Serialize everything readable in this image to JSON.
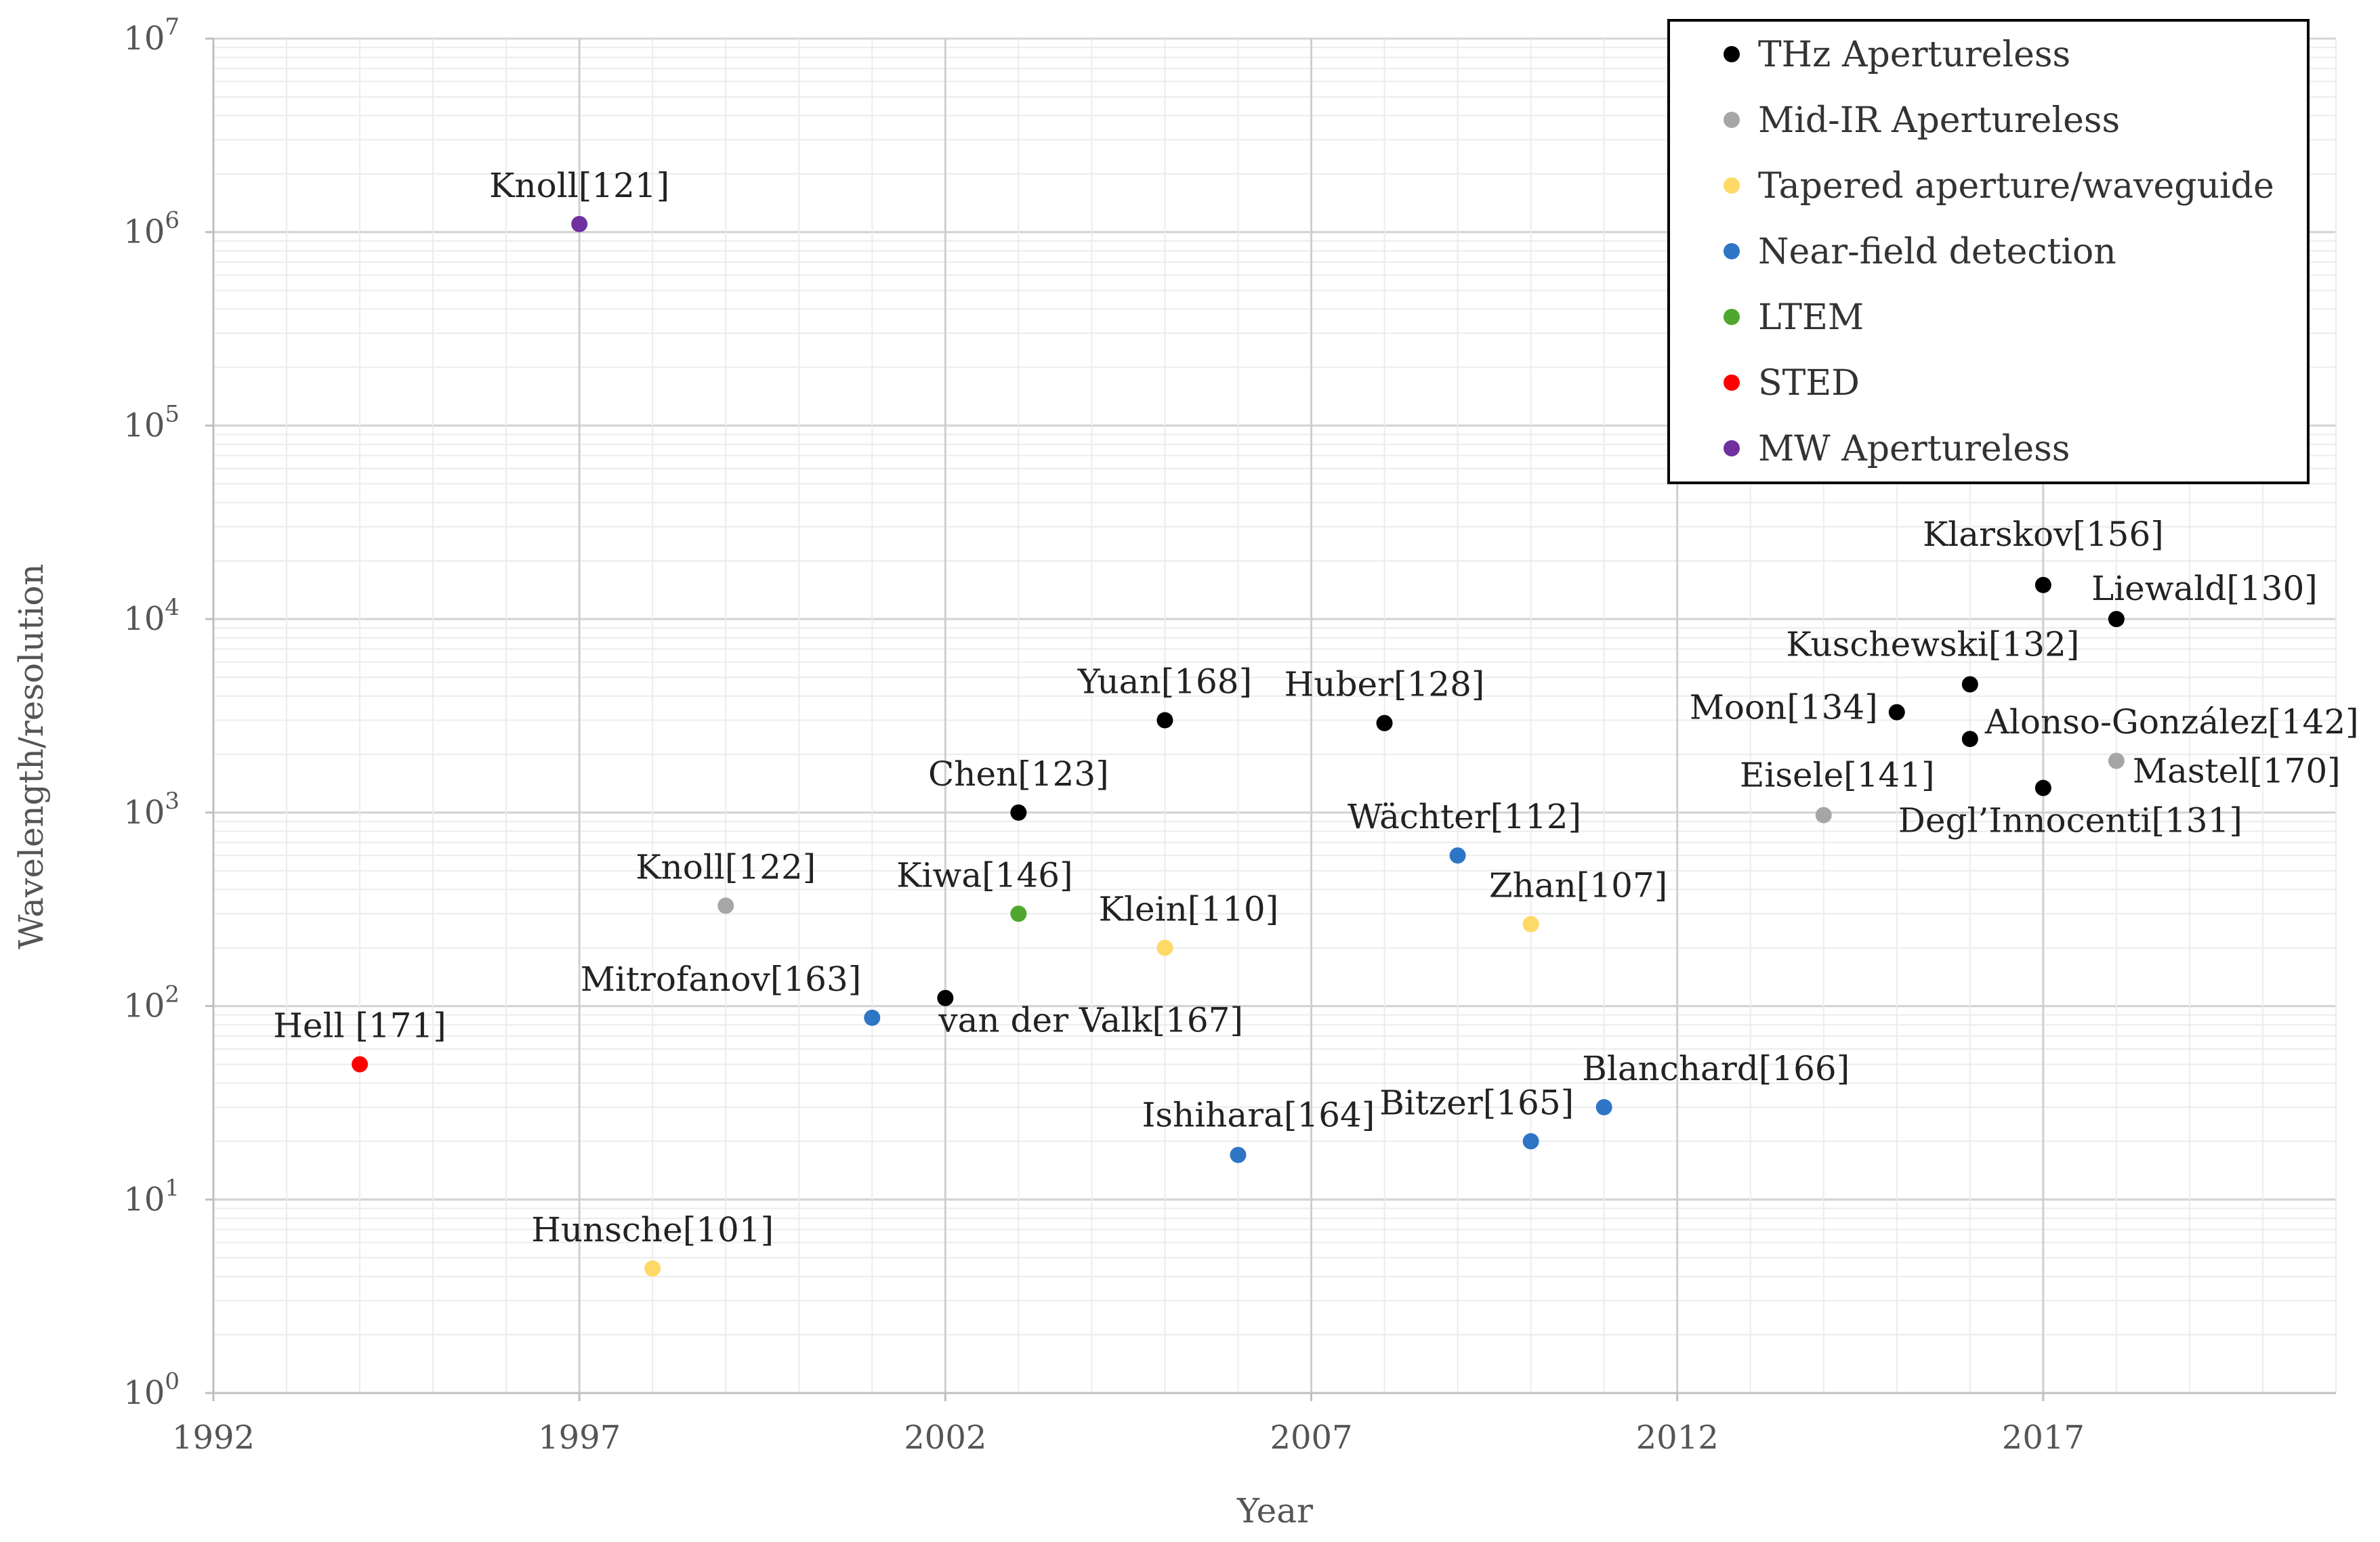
{
  "chart_data": {
    "type": "scatter",
    "title": "",
    "xlabel": "Year",
    "ylabel": "Wavelength/resolution",
    "xlim": [
      1992,
      2021
    ],
    "ylim_log10": [
      0,
      7
    ],
    "x_ticks": [
      "1992",
      "1997",
      "2002",
      "2007",
      "2012",
      "2017"
    ],
    "y_tick_base": "10",
    "y_tick_exponents": [
      "0",
      "1",
      "2",
      "3",
      "4",
      "5",
      "6",
      "7"
    ],
    "grid": true,
    "legend_position": "top-right",
    "series": [
      {
        "name": "THz Apertureless",
        "color": "#000000",
        "points": [
          {
            "label": "Chen[123]",
            "x": 2003,
            "y": 1000
          },
          {
            "label": "van der Valk[167]",
            "x": 2002,
            "y": 110
          },
          {
            "label": "Yuan[168]",
            "x": 2005,
            "y": 3000
          },
          {
            "label": "Huber[128]",
            "x": 2008,
            "y": 2900
          },
          {
            "label": "Moon[134]",
            "x": 2015,
            "y": 3300
          },
          {
            "label": "Kuschewski[132]",
            "x": 2016,
            "y": 4600
          },
          {
            "label": "Klarskov[156]",
            "x": 2017,
            "y": 15000
          },
          {
            "label": "Liewald[130]",
            "x": 2018,
            "y": 10000
          },
          {
            "label": "Alonso-González[142]",
            "x": 2016,
            "y": 2400
          },
          {
            "label": "Degl’Innocenti[131]",
            "x": 2017,
            "y": 1340
          }
        ]
      },
      {
        "name": "Mid-IR Apertureless",
        "color": "#a6a6a6",
        "points": [
          {
            "label": "Knoll[122]",
            "x": 1999,
            "y": 330
          },
          {
            "label": "Eisele[141]",
            "x": 2014,
            "y": 970
          },
          {
            "label": "Mastel[170]",
            "x": 2018,
            "y": 1850
          }
        ]
      },
      {
        "name": "Tapered aperture/waveguide",
        "color": "#ffd966",
        "points": [
          {
            "label": "Hunsche[101]",
            "x": 1998,
            "y": 4.4
          },
          {
            "label": "Klein[110]",
            "x": 2005,
            "y": 200
          },
          {
            "label": "Zhan[107]",
            "x": 2010,
            "y": 265
          }
        ]
      },
      {
        "name": "Near-field detection",
        "color": "#2e75c6",
        "points": [
          {
            "label": "Mitrofanov[163]",
            "x": 2001,
            "y": 87
          },
          {
            "label": "Ishihara[164]",
            "x": 2006,
            "y": 17
          },
          {
            "label": "Wächter[112]",
            "x": 2009,
            "y": 600
          },
          {
            "label": "Bitzer[165]",
            "x": 2010,
            "y": 20
          },
          {
            "label": "Blanchard[166]",
            "x": 2011,
            "y": 30
          }
        ]
      },
      {
        "name": "LTEM",
        "color": "#4ea72e",
        "points": [
          {
            "label": "Kiwa[146]",
            "x": 2003,
            "y": 300
          }
        ]
      },
      {
        "name": "STED",
        "color": "#ff0000",
        "points": [
          {
            "label": "Hell [171]",
            "x": 1994,
            "y": 50
          }
        ]
      },
      {
        "name": "MW Apertureless",
        "color": "#7030a0",
        "points": [
          {
            "label": "Knoll[121]",
            "x": 1997,
            "y": 1100000
          }
        ]
      }
    ]
  }
}
